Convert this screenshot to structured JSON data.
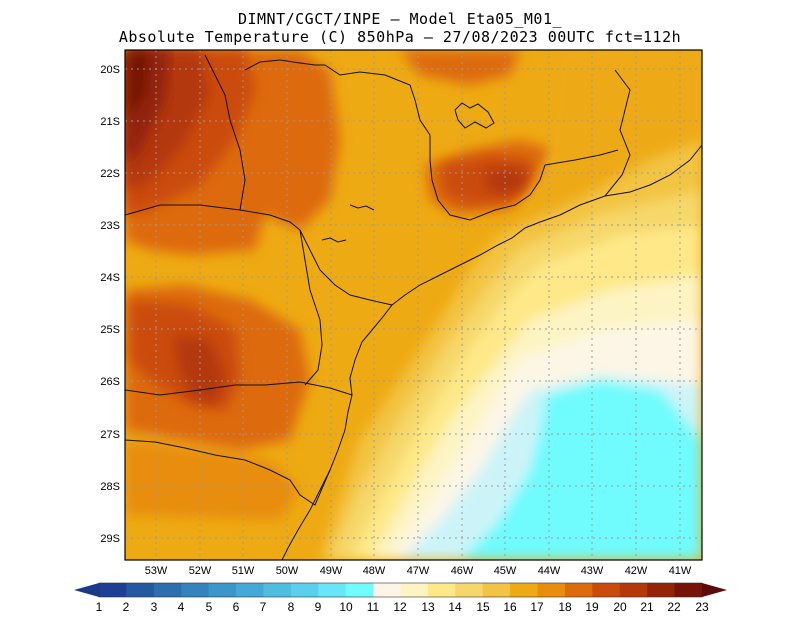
{
  "header": {
    "line1": "DIMNT/CGCT/INPE –  Model Eta05_M01_",
    "line2": "Absolute Temperature (C) 850hPa –  27/08/2023 00UTC fct=112h"
  },
  "map": {
    "lon_labels": [
      "53W",
      "52W",
      "51W",
      "50W",
      "49W",
      "48W",
      "47W",
      "46W",
      "45W",
      "44W",
      "43W",
      "42W",
      "41W"
    ],
    "lat_labels": [
      "20S",
      "21S",
      "22S",
      "23S",
      "24S",
      "25S",
      "26S",
      "27S",
      "28S",
      "29S"
    ],
    "lon_range": [
      -53.7,
      -40.5
    ],
    "lat_range": [
      -29.4,
      -19.6
    ]
  },
  "colorbar": {
    "labels": [
      "1",
      "2",
      "3",
      "4",
      "5",
      "6",
      "7",
      "8",
      "9",
      "10",
      "11",
      "12",
      "13",
      "14",
      "15",
      "16",
      "17",
      "18",
      "19",
      "20",
      "21",
      "22",
      "23"
    ],
    "colors": [
      "#1f3f96",
      "#24599f",
      "#2d6fae",
      "#3483bf",
      "#3c96cc",
      "#45a9d8",
      "#4fbce2",
      "#5bd0ee",
      "#66e6f8",
      "#70fbfd",
      "#fdf6e6",
      "#fdf4c4",
      "#fee888",
      "#f6d86a",
      "#f3c443",
      "#eeaa12",
      "#e88d0d",
      "#dd6a0b",
      "#cb4c0a",
      "#b43809",
      "#932407",
      "#741306"
    ],
    "low_color": "#1c3a8c",
    "high_color": "#5c0a0a"
  }
}
